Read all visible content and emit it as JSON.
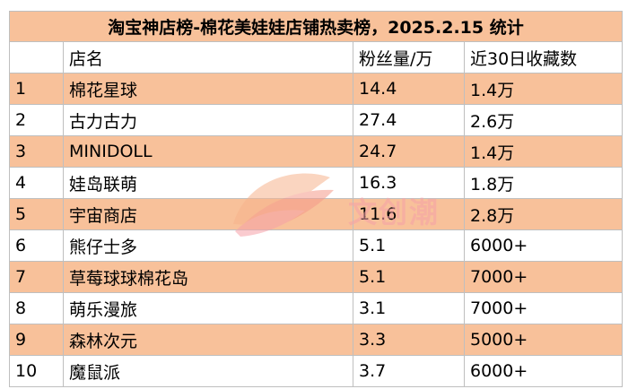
{
  "title": "淘宝神店榜-棉花美娃娃店铺热卖榜，2025.2.15 统计",
  "headers": [
    "",
    "店名",
    "粉丝量/万",
    "近30日收藏数"
  ],
  "rows": [
    [
      "1",
      "棉花星球",
      "14.4",
      "1.4万"
    ],
    [
      "2",
      "古力古力",
      "27.4",
      "2.6万"
    ],
    [
      "3",
      "MINIDOLL",
      "24.7",
      "1.4万"
    ],
    [
      "4",
      "娃岛联萌",
      "16.3",
      "1.8万"
    ],
    [
      "5",
      "宇宙商店",
      "11.6",
      "2.8万"
    ],
    [
      "6",
      "熊仔士多",
      "5.1",
      "6000+"
    ],
    [
      "7",
      "草莓球球棉花岛",
      "5.1",
      "7000+"
    ],
    [
      "8",
      "萌乐漫旅",
      "3.1",
      "7000+"
    ],
    [
      "9",
      "森林次元",
      "3.3",
      "5000+"
    ],
    [
      "10",
      "魔鼠派",
      "3.7",
      "6000+"
    ]
  ],
  "watermark": {
    "text": "文创潮",
    "icon": "fish-logo-icon"
  },
  "colors": {
    "header_fill": "#f8c19a",
    "watermark": "#f6a2a8"
  }
}
